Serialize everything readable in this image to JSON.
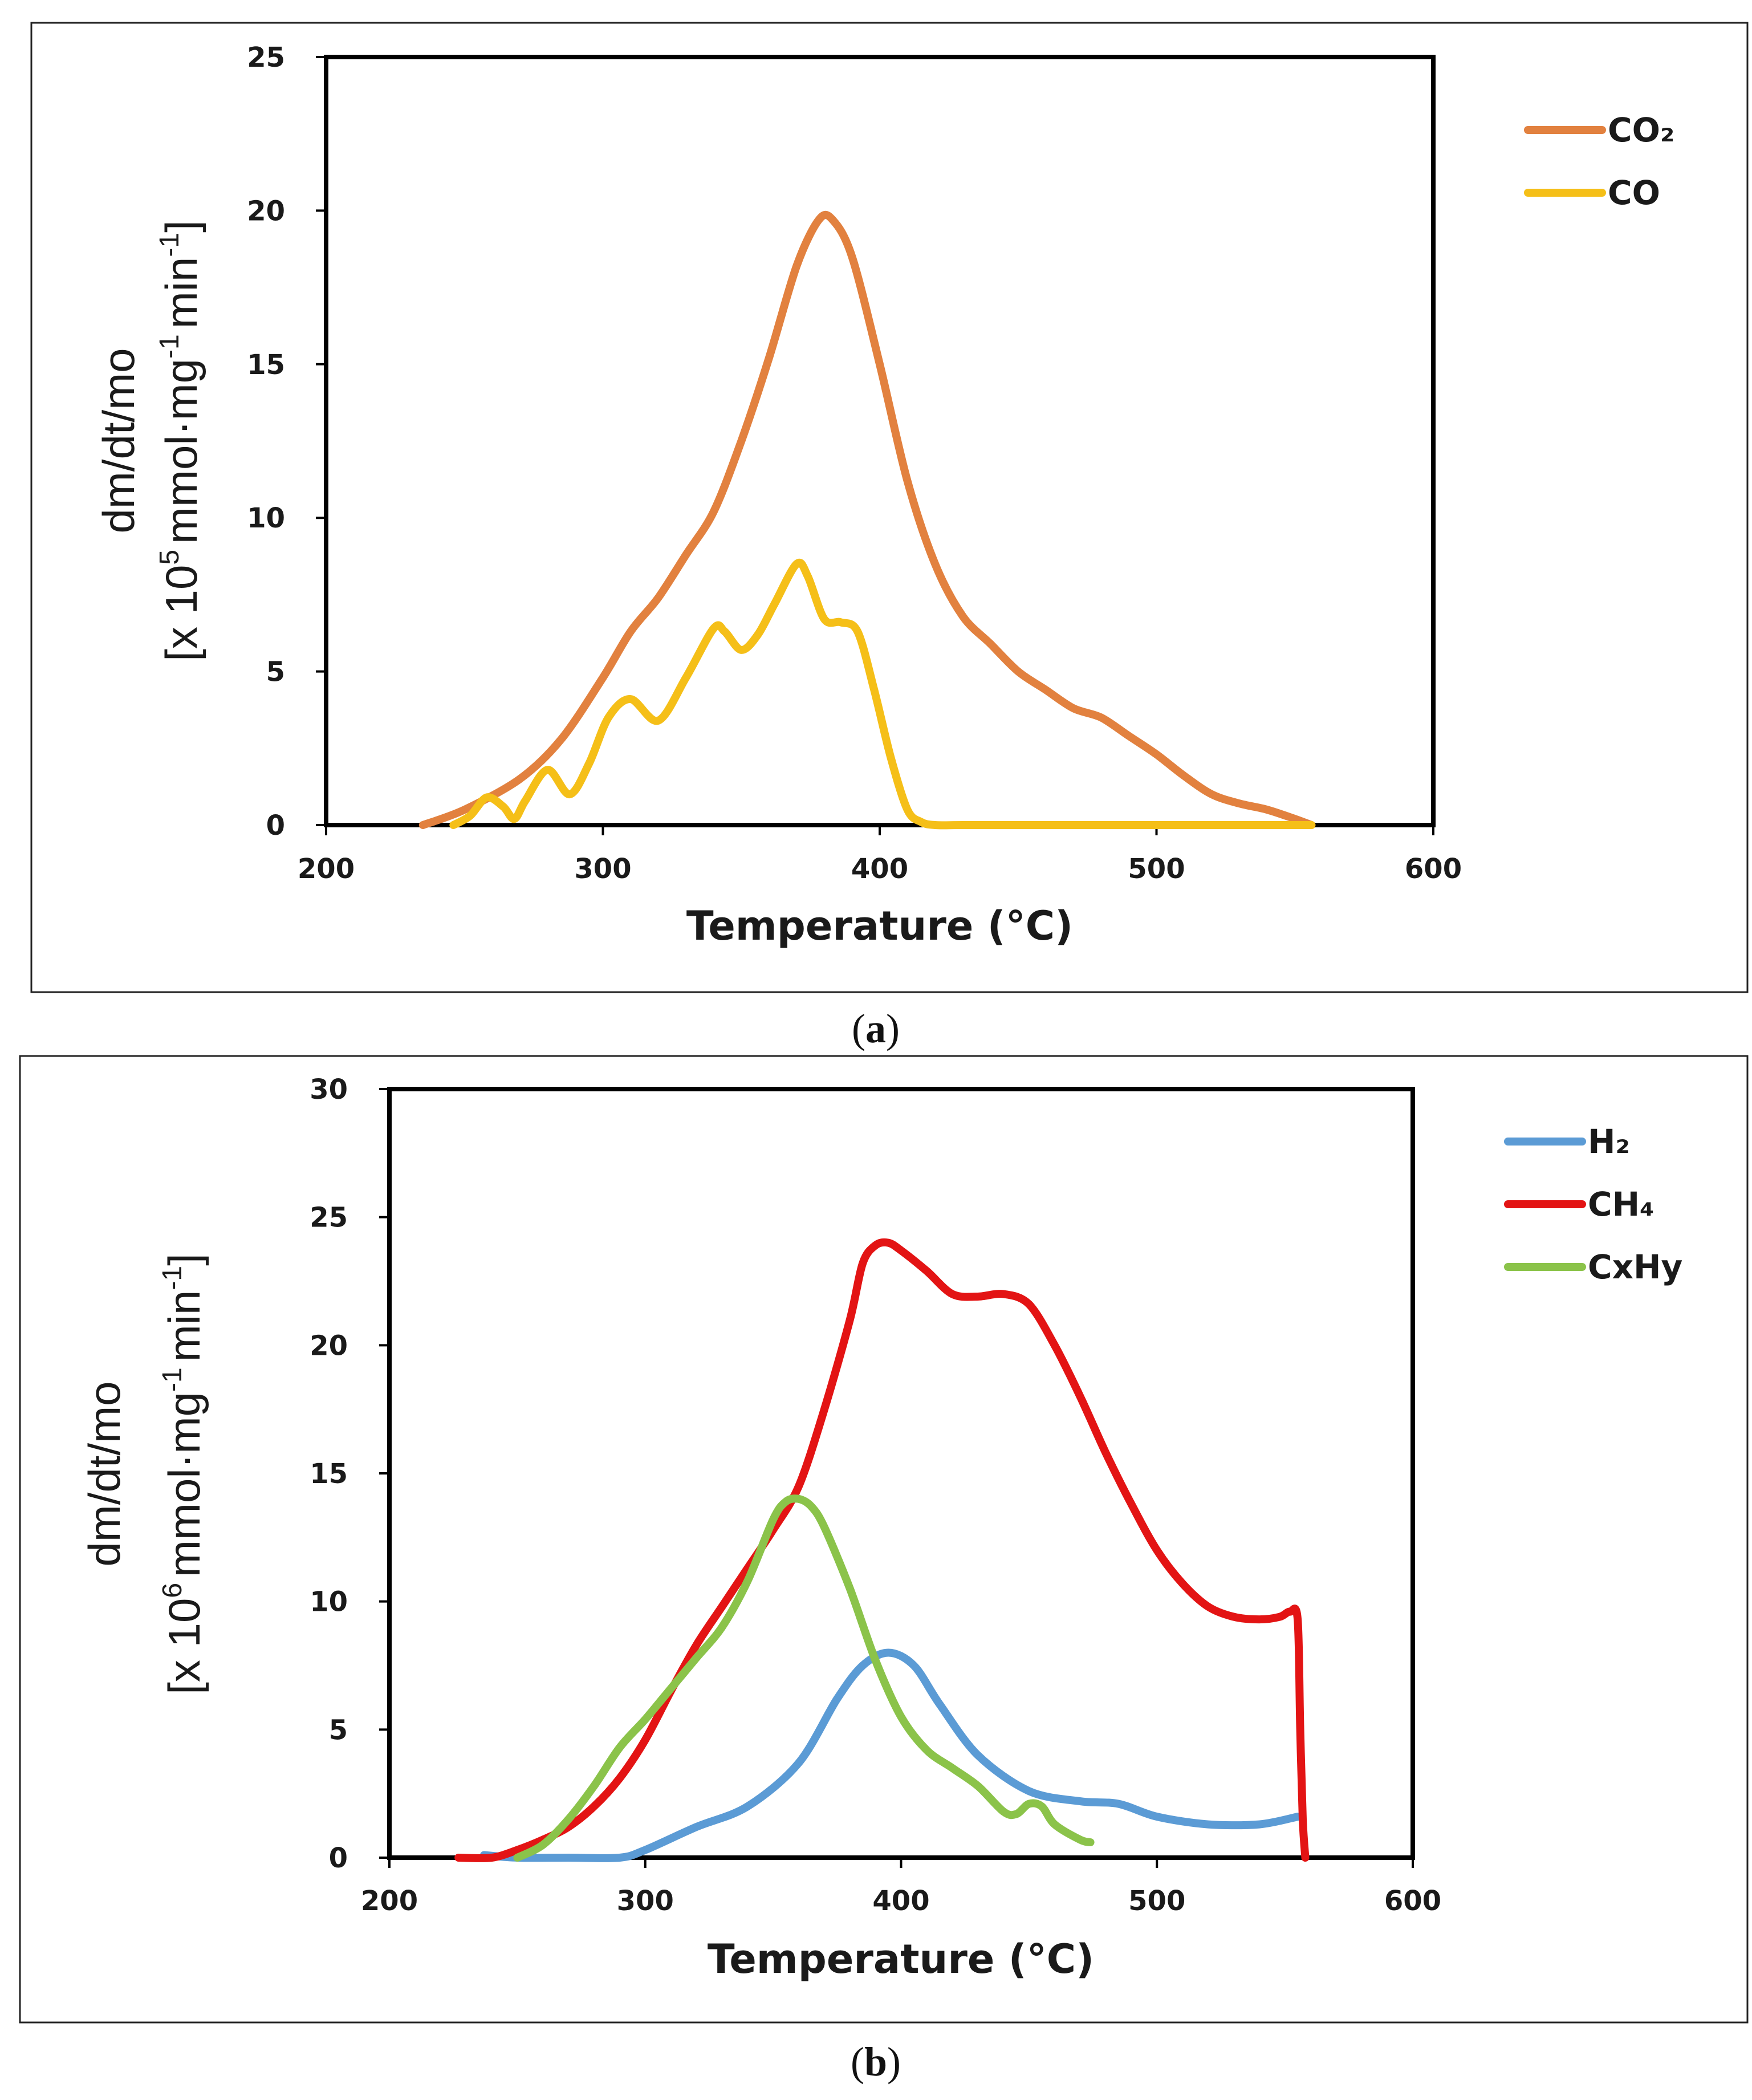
{
  "chart_data": [
    {
      "id": "a",
      "type": "line",
      "caption": "a",
      "xlabel": "Temperature (°C)",
      "ylabel_line1": "dm/dt/mo",
      "ylabel_line2_prefix": "[x 10",
      "ylabel_line2_exp": "5",
      "ylabel_line2_mid": "mmol",
      "ylabel_line2_dot": "·",
      "ylabel_line2_mg": "mg",
      "ylabel_line2_mgexp": "-1",
      "ylabel_line2_min": "min",
      "ylabel_line2_minexp": "-1",
      "ylabel_line2_end": "]",
      "xlim": [
        200,
        600
      ],
      "ylim": [
        0,
        25
      ],
      "xticks": [
        "200",
        "300",
        "400",
        "500",
        "600"
      ],
      "yticks": [
        "0",
        "5",
        "10",
        "15",
        "20",
        "25"
      ],
      "legend_position": "right-top",
      "series": [
        {
          "name": "CO₂",
          "color": "#E2813F",
          "x": [
            235,
            250,
            270,
            285,
            300,
            310,
            320,
            330,
            340,
            350,
            360,
            370,
            378,
            383,
            390,
            400,
            410,
            420,
            430,
            440,
            450,
            460,
            470,
            480,
            490,
            500,
            510,
            520,
            530,
            540,
            550,
            556
          ],
          "y": [
            0,
            0.5,
            1.5,
            2.8,
            4.8,
            6.3,
            7.4,
            8.8,
            10.2,
            12.5,
            15.2,
            18.2,
            19.7,
            19.7,
            18.5,
            15,
            11.2,
            8.5,
            6.8,
            5.9,
            5.0,
            4.4,
            3.8,
            3.5,
            2.9,
            2.3,
            1.6,
            1.0,
            0.7,
            0.5,
            0.2,
            0
          ]
        },
        {
          "name": "CO",
          "color": "#F5BF18",
          "x": [
            246,
            252,
            258,
            264,
            268,
            272,
            280,
            288,
            295,
            302,
            310,
            320,
            330,
            340,
            344,
            350,
            356,
            362,
            370,
            374,
            380,
            386,
            392,
            398,
            404,
            410,
            415,
            420,
            430,
            450,
            500,
            556
          ],
          "y": [
            0,
            0.3,
            0.9,
            0.6,
            0.2,
            0.8,
            1.8,
            1.0,
            2.0,
            3.5,
            4.1,
            3.4,
            4.8,
            6.4,
            6.3,
            5.7,
            6.2,
            7.2,
            8.5,
            8.1,
            6.7,
            6.6,
            6.3,
            4.4,
            2.2,
            0.5,
            0.1,
            0,
            0,
            0,
            0,
            0
          ]
        }
      ]
    },
    {
      "id": "b",
      "type": "line",
      "caption": "b",
      "xlabel": "Temperature (°C)",
      "ylabel_line1": "dm/dt/mo",
      "ylabel_line2_prefix": "[x 10",
      "ylabel_line2_exp": "6",
      "ylabel_line2_mid": "mmol",
      "ylabel_line2_dot": "·",
      "ylabel_line2_mg": "mg",
      "ylabel_line2_mgexp": "-1",
      "ylabel_line2_min": "min",
      "ylabel_line2_minexp": "-1",
      "ylabel_line2_end": "]",
      "xlim": [
        200,
        600
      ],
      "ylim": [
        0,
        30
      ],
      "xticks": [
        "200",
        "300",
        "400",
        "500",
        "600"
      ],
      "yticks": [
        "0",
        "5",
        "10",
        "15",
        "20",
        "25",
        "30"
      ],
      "legend_position": "right-top",
      "series": [
        {
          "name": "H₂",
          "color": "#5B9BD5",
          "x": [
            237,
            250,
            270,
            290,
            300,
            320,
            340,
            360,
            375,
            385,
            395,
            405,
            415,
            430,
            450,
            470,
            485,
            500,
            520,
            540,
            555
          ],
          "y": [
            0.1,
            0,
            0,
            0,
            0.3,
            1.2,
            2.0,
            3.7,
            6.2,
            7.5,
            8.0,
            7.5,
            6.0,
            4.0,
            2.6,
            2.2,
            2.1,
            1.6,
            1.3,
            1.3,
            1.6
          ]
        },
        {
          "name": "CH₄",
          "color": "#E31414",
          "x": [
            227,
            240,
            250,
            260,
            270,
            280,
            290,
            300,
            310,
            320,
            330,
            340,
            350,
            360,
            370,
            380,
            385,
            390,
            395,
            400,
            410,
            420,
            430,
            440,
            450,
            460,
            470,
            480,
            490,
            500,
            510,
            520,
            530,
            540,
            548,
            552,
            555,
            556,
            557,
            558
          ],
          "y": [
            0,
            0,
            0.3,
            0.7,
            1.2,
            2.0,
            3.1,
            4.6,
            6.5,
            8.3,
            9.8,
            11.3,
            12.8,
            14.5,
            17.5,
            21.0,
            23.2,
            23.9,
            24.0,
            23.7,
            22.9,
            22.0,
            21.9,
            22.0,
            21.6,
            20.0,
            18.0,
            15.8,
            13.8,
            12.0,
            10.7,
            9.8,
            9.4,
            9.3,
            9.4,
            9.6,
            9.3,
            5.0,
            1.5,
            0
          ]
        },
        {
          "name": "CxHy",
          "color": "#8BC34A",
          "x": [
            250,
            260,
            270,
            280,
            290,
            300,
            310,
            320,
            330,
            340,
            350,
            355,
            360,
            365,
            370,
            380,
            390,
            400,
            410,
            420,
            430,
            440,
            445,
            450,
            455,
            460,
            470,
            474
          ],
          "y": [
            0,
            0.5,
            1.5,
            2.8,
            4.3,
            5.4,
            6.6,
            7.8,
            9.0,
            10.8,
            13.2,
            13.9,
            14.0,
            13.7,
            12.9,
            10.5,
            7.7,
            5.5,
            4.2,
            3.5,
            2.8,
            1.8,
            1.7,
            2.1,
            2.0,
            1.3,
            0.7,
            0.6
          ]
        }
      ]
    }
  ]
}
